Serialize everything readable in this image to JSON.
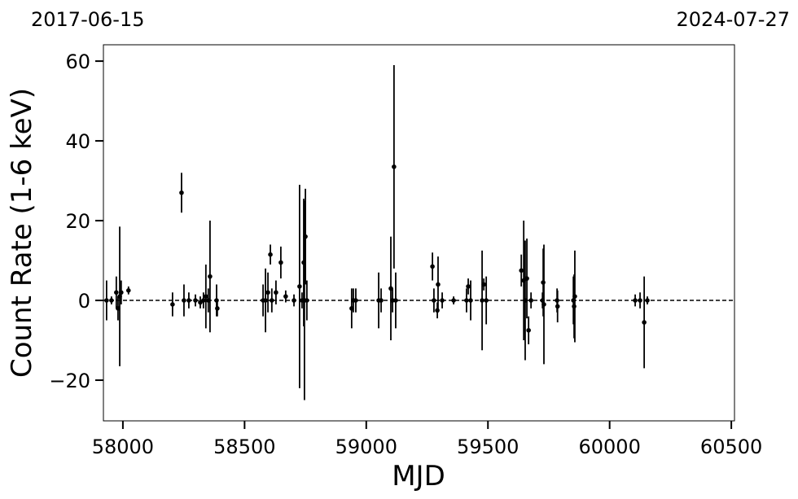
{
  "chart_data": {
    "type": "scatter",
    "xlabel": "MJD",
    "ylabel": "Count Rate (1-6 keV)",
    "annotations": [
      "2017-06-15",
      "2024-07-27"
    ],
    "color": "#000000",
    "hline": 0,
    "xlim": [
      57920,
      60513
    ],
    "ylim": [
      -30.2,
      64.1
    ],
    "xticks": [
      58000,
      58500,
      59000,
      59500,
      60000,
      60500
    ],
    "yticks": [
      {
        "value": -20,
        "label": "−20"
      },
      0,
      20,
      40,
      60
    ],
    "x": [
      57933,
      57953,
      57973,
      57980,
      57987,
      57993,
      58023,
      58204,
      58241,
      58251,
      58271,
      58298,
      58318,
      58331,
      58341,
      58351,
      58358,
      58385,
      58388,
      58576,
      58586,
      58596,
      58606,
      58612,
      58629,
      58649,
      58669,
      58703,
      58726,
      58736,
      58743,
      58746,
      58750,
      58756,
      58940,
      58947,
      58957,
      59051,
      59061,
      59101,
      59108,
      59114,
      59121,
      59272,
      59278,
      59292,
      59295,
      59312,
      59359,
      59412,
      59419,
      59429,
      59476,
      59483,
      59493,
      59637,
      59647,
      59653,
      59660,
      59667,
      59677,
      59724,
      59727,
      59730,
      59784,
      59786,
      59851,
      59854,
      59857,
      60105,
      60125,
      60142,
      60155
    ],
    "values": [
      0,
      0,
      2,
      -2,
      1,
      2,
      2.5,
      -1,
      27,
      0,
      0,
      0,
      -0.5,
      0,
      1,
      0,
      6,
      0,
      -2,
      0,
      0,
      2,
      11.5,
      0,
      2,
      9.5,
      1,
      0,
      3.5,
      0,
      9.5,
      0,
      16,
      0,
      -2,
      0,
      0,
      0,
      0,
      3,
      0,
      33.5,
      0,
      8.5,
      0,
      -2.5,
      4,
      0,
      0,
      0,
      3.5,
      0,
      0,
      4,
      0,
      7.5,
      5,
      0,
      5.5,
      -7.5,
      0,
      0,
      4.5,
      -1,
      0,
      -1.5,
      0,
      -1.5,
      1,
      0,
      0,
      -5.5,
      0
    ],
    "errors": [
      5,
      1,
      4,
      3,
      17.5,
      3,
      1,
      3,
      5,
      4,
      2,
      1.5,
      1.5,
      2,
      8,
      3,
      14,
      4,
      2,
      4,
      8,
      5,
      2.5,
      3,
      3,
      4,
      1.5,
      1.5,
      25.5,
      2,
      16,
      25,
      12,
      5,
      5,
      3,
      3,
      7,
      3,
      13,
      3,
      25.5,
      7,
      3.5,
      3,
      2,
      7,
      2,
      1,
      3,
      2,
      5,
      12.5,
      1.5,
      6,
      4,
      15,
      15,
      10,
      3.5,
      2,
      2,
      8.5,
      15,
      3,
      4,
      6,
      8,
      11.5,
      1.5,
      2,
      11.5,
      1
    ]
  }
}
